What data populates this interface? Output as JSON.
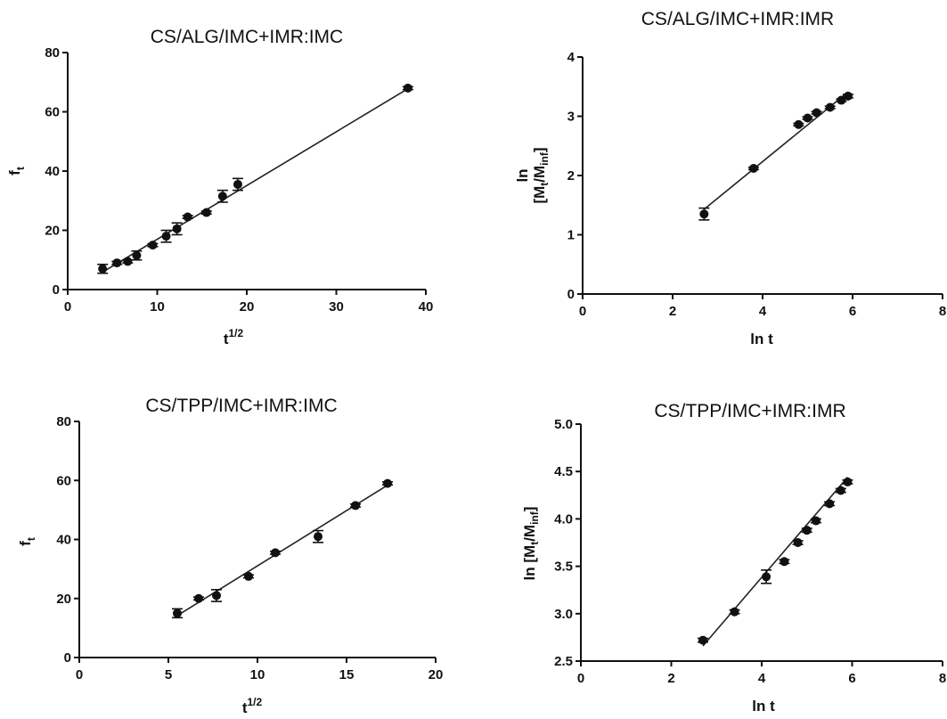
{
  "chart_data": [
    {
      "type": "scatter",
      "title": "CS/ALG/IMC+IMR:IMC",
      "xlabel": "t",
      "xlabel_sup": "1/2",
      "ylabel": "f",
      "ylabel_sub": "t",
      "xlim": [
        0,
        40
      ],
      "ylim": [
        0,
        80
      ],
      "xticks": [
        "0",
        "10",
        "20",
        "30",
        "40"
      ],
      "yticks": [
        "0",
        "20",
        "40",
        "60",
        "80"
      ],
      "xtick_values": [
        0,
        10,
        20,
        30,
        40
      ],
      "ytick_values": [
        0,
        20,
        40,
        60,
        80
      ],
      "x": [
        3.9,
        5.5,
        6.7,
        7.7,
        9.5,
        11,
        12.2,
        13.4,
        15.5,
        17.3,
        19,
        38
      ],
      "y": [
        7,
        9,
        9.5,
        11.5,
        15,
        18,
        20.5,
        24.5,
        26,
        31.5,
        35.5,
        68
      ],
      "err": [
        1.5,
        0.5,
        0.5,
        1.5,
        0.5,
        2,
        2,
        0.5,
        0.5,
        2,
        2,
        0.5
      ],
      "fit": {
        "x": [
          3.9,
          38
        ],
        "y": [
          5.9,
          67.8
        ]
      },
      "grid": false
    },
    {
      "type": "scatter",
      "title": "CS/ALG/IMC+IMR:IMR",
      "xlabel": "ln t",
      "ylabel_line1": "ln",
      "ylabel_line2": "[M",
      "ylabel_sub1": "t",
      "ylabel_mid": "/M",
      "ylabel_sub2": "inf",
      "ylabel_end": "]",
      "xlim": [
        0,
        8
      ],
      "ylim": [
        0,
        4
      ],
      "xticks": [
        "0",
        "2",
        "4",
        "6",
        "8"
      ],
      "yticks": [
        "0",
        "1",
        "2",
        "3",
        "4"
      ],
      "xtick_values": [
        0,
        2,
        4,
        6,
        8
      ],
      "ytick_values": [
        0,
        1,
        2,
        3,
        4
      ],
      "x": [
        2.7,
        3.8,
        4.8,
        5.0,
        5.2,
        5.5,
        5.75,
        5.9
      ],
      "y": [
        1.35,
        2.12,
        2.86,
        2.97,
        3.06,
        3.15,
        3.27,
        3.34
      ],
      "err": [
        0.1,
        0.02,
        0.02,
        0.02,
        0.02,
        0.02,
        0.02,
        0.03
      ],
      "fit": {
        "x": [
          2.7,
          5.9
        ],
        "y": [
          1.43,
          3.41
        ]
      },
      "grid": false
    },
    {
      "type": "scatter",
      "title": "CS/TPP/IMC+IMR:IMC",
      "xlabel": "t",
      "xlabel_sup": "1/2",
      "ylabel": "f",
      "ylabel_sub": "t",
      "xlim": [
        0,
        20
      ],
      "ylim": [
        0,
        80
      ],
      "xticks": [
        "0",
        "5",
        "10",
        "15",
        "20"
      ],
      "yticks": [
        "0",
        "20",
        "40",
        "60",
        "80"
      ],
      "xtick_values": [
        0,
        5,
        10,
        15,
        20
      ],
      "ytick_values": [
        0,
        20,
        40,
        60,
        80
      ],
      "x": [
        5.5,
        6.7,
        7.7,
        9.5,
        11,
        13.4,
        15.5,
        17.3
      ],
      "y": [
        15,
        20,
        21,
        27.5,
        35.5,
        41,
        51.5,
        59
      ],
      "err": [
        1.5,
        0.5,
        2,
        0.5,
        0.5,
        2,
        0.5,
        0.5
      ],
      "fit": {
        "x": [
          5.5,
          17.3
        ],
        "y": [
          14.2,
          58.4
        ]
      },
      "grid": false
    },
    {
      "type": "scatter",
      "title": "CS/TPP/IMC+IMR:IMR",
      "xlabel": "ln t",
      "ylabel_pre": "ln [M",
      "ylabel_sub1": "t",
      "ylabel_mid": "/M",
      "ylabel_sub2": "inf",
      "ylabel_end": "]",
      "xlim": [
        0,
        8
      ],
      "ylim": [
        2.5,
        5.0
      ],
      "xticks": [
        "0",
        "2",
        "4",
        "6",
        "8"
      ],
      "yticks": [
        "2.5",
        "3.0",
        "3.5",
        "4.0",
        "4.5",
        "5.0"
      ],
      "xtick_values": [
        0,
        2,
        4,
        6,
        8
      ],
      "ytick_values": [
        2.5,
        3.0,
        3.5,
        4.0,
        4.5,
        5.0
      ],
      "x": [
        2.7,
        3.4,
        4.1,
        4.5,
        4.8,
        5.0,
        5.2,
        5.5,
        5.75,
        5.9
      ],
      "y": [
        2.72,
        3.02,
        3.39,
        3.55,
        3.75,
        3.88,
        3.98,
        4.16,
        4.3,
        4.39
      ],
      "err": [
        0.02,
        0.02,
        0.07,
        0.02,
        0.02,
        0.02,
        0.02,
        0.02,
        0.02,
        0.02
      ],
      "fit": {
        "x": [
          2.7,
          5.9
        ],
        "y": [
          2.66,
          4.44
        ]
      },
      "grid": false
    }
  ]
}
